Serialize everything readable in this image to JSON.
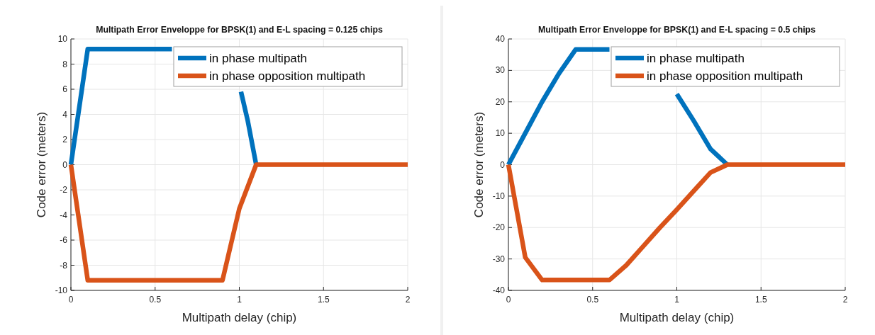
{
  "chart_data": [
    {
      "type": "line",
      "title": "Multipath Error Enveloppe for BPSK(1) and E-L spacing = 0.125 chips",
      "xlabel": "Multipath delay (chip)",
      "ylabel": "Code error (meters)",
      "xlim": [
        0,
        2
      ],
      "xticks": [
        0,
        0.5,
        1,
        1.5,
        2
      ],
      "ylim": [
        -10,
        10
      ],
      "yticks": [
        -10,
        -8,
        -6,
        -4,
        -2,
        0,
        2,
        4,
        6,
        8,
        10
      ],
      "grid": true,
      "legend": "top right",
      "series": [
        {
          "name": "in phase multipath",
          "color": "#0072bd",
          "x": [
            0,
            0.1,
            0.6,
            0.8,
            1.01,
            1.05,
            1.1
          ],
          "values": [
            0,
            9.2,
            9.2,
            null,
            5.8,
            3.5,
            0
          ]
        },
        {
          "name": "in phase opposition multipath",
          "color": "#d95319",
          "x": [
            0,
            0.1,
            0.9,
            1.0,
            1.1,
            2
          ],
          "values": [
            0,
            -9.2,
            -9.2,
            -3.5,
            0,
            0
          ]
        }
      ]
    },
    {
      "type": "line",
      "title": "Multipath Error Enveloppe for BPSK(1) and E-L spacing = 0.5 chips",
      "xlabel": "Multipath delay (chip)",
      "ylabel": "Code error (meters)",
      "xlim": [
        0,
        2
      ],
      "xticks": [
        0,
        0.5,
        1,
        1.5,
        2
      ],
      "ylim": [
        -40,
        40
      ],
      "yticks": [
        -40,
        -30,
        -20,
        -10,
        0,
        10,
        20,
        30,
        40
      ],
      "grid": true,
      "legend": "top right",
      "series": [
        {
          "name": "in phase multipath",
          "color": "#0072bd",
          "x": [
            0,
            0.1,
            0.2,
            0.3,
            0.4,
            0.6,
            0.8,
            1.0,
            1.1,
            1.2,
            1.3
          ],
          "values": [
            0,
            10,
            20,
            29,
            36.7,
            36.7,
            null,
            22.5,
            14,
            5,
            0
          ]
        },
        {
          "name": "in phase opposition multipath",
          "color": "#d95319",
          "x": [
            0,
            0.1,
            0.2,
            0.6,
            0.7,
            0.8,
            0.9,
            1.0,
            1.1,
            1.2,
            1.3,
            2
          ],
          "values": [
            0,
            -29.5,
            -36.7,
            -36.7,
            -32,
            -26,
            -20,
            -14.3,
            -8.4,
            -2.5,
            0,
            0
          ]
        }
      ]
    }
  ]
}
